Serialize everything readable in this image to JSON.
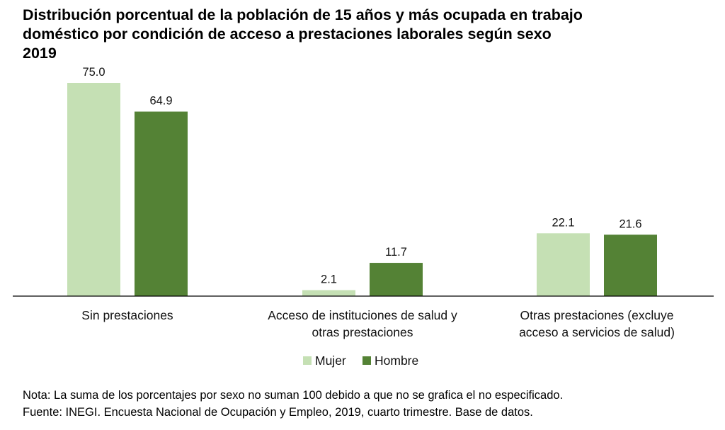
{
  "chart_data": {
    "type": "bar",
    "title": [
      "Distribución porcentual de la población de 15 años y más ocupada en trabajo",
      "doméstico por condición de acceso a prestaciones laborales según sexo",
      "2019"
    ],
    "categories": [
      [
        "Sin prestaciones"
      ],
      [
        "Acceso de instituciones de salud y",
        "otras prestaciones"
      ],
      [
        "Otras prestaciones (excluye",
        "acceso a servicios de salud)"
      ]
    ],
    "series": [
      {
        "name": "Mujer",
        "color": "#c5e0b4",
        "values": [
          75.0,
          2.1,
          22.1
        ],
        "labels": [
          "75.0",
          "2.1",
          "22.1"
        ]
      },
      {
        "name": "Hombre",
        "color": "#548235",
        "values": [
          64.9,
          11.7,
          21.6
        ],
        "labels": [
          "64.9",
          "11.7",
          "21.6"
        ]
      }
    ],
    "ylim": [
      0,
      75
    ],
    "xlabel": "",
    "ylabel": "",
    "legend": "bottom-center",
    "grid": false,
    "axis_color": "#000000"
  },
  "notes": [
    "Nota: La suma de los porcentajes por sexo no suman 100 debido a que no se grafica el no especificado.",
    "Fuente: INEGI. Encuesta Nacional de Ocupación y Empleo, 2019, cuarto trimestre. Base de datos."
  ]
}
